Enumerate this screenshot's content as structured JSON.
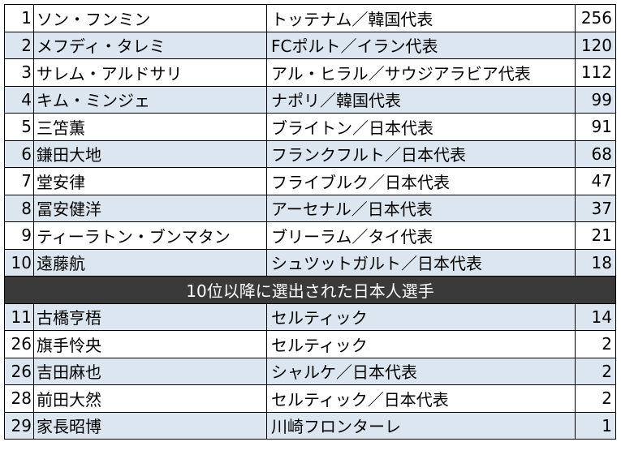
{
  "ranking": {
    "top": [
      {
        "rank": "1",
        "name": "ソン・フンミン",
        "team": "トッテナム／韓国代表",
        "votes": "256"
      },
      {
        "rank": "2",
        "name": "メフディ・タレミ",
        "team": "FCポルト／イラン代表",
        "votes": "120"
      },
      {
        "rank": "3",
        "name": "サレム・アルドサリ",
        "team": "アル・ヒラル／サウジアラビア代表",
        "votes": "112"
      },
      {
        "rank": "4",
        "name": "キム・ミンジェ",
        "team": "ナポリ／韓国代表",
        "votes": "99"
      },
      {
        "rank": "5",
        "name": "三笘薫",
        "team": "ブライトン／日本代表",
        "votes": "91"
      },
      {
        "rank": "6",
        "name": "鎌田大地",
        "team": "フランクフルト／日本代表",
        "votes": "68"
      },
      {
        "rank": "7",
        "name": "堂安律",
        "team": "フライブルク／日本代表",
        "votes": "47"
      },
      {
        "rank": "8",
        "name": "冨安健洋",
        "team": "アーセナル／日本代表",
        "votes": "37"
      },
      {
        "rank": "9",
        "name": "ティーラトン・ブンマタン",
        "team": "ブリーラム／タイ代表",
        "votes": "21"
      },
      {
        "rank": "10",
        "name": "遠藤航",
        "team": "シュツットガルト／日本代表",
        "votes": "18"
      }
    ],
    "divider_label": "10位以降に選出された日本人選手",
    "japanese": [
      {
        "rank": "11",
        "name": "古橋亨梧",
        "team": "セルティック",
        "votes": "14"
      },
      {
        "rank": "26",
        "name": "旗手怜央",
        "team": "セルティック",
        "votes": "2"
      },
      {
        "rank": "26",
        "name": "吉田麻也",
        "team": "シャルケ／日本代表",
        "votes": "2"
      },
      {
        "rank": "28",
        "name": "前田大然",
        "team": "セルティック／日本代表",
        "votes": "2"
      },
      {
        "rank": "29",
        "name": "家長昭博",
        "team": "川崎フロンターレ",
        "votes": "1"
      }
    ]
  },
  "colors": {
    "row_alt": "#dce6f1",
    "divider_bg": "#3a3a3a"
  }
}
